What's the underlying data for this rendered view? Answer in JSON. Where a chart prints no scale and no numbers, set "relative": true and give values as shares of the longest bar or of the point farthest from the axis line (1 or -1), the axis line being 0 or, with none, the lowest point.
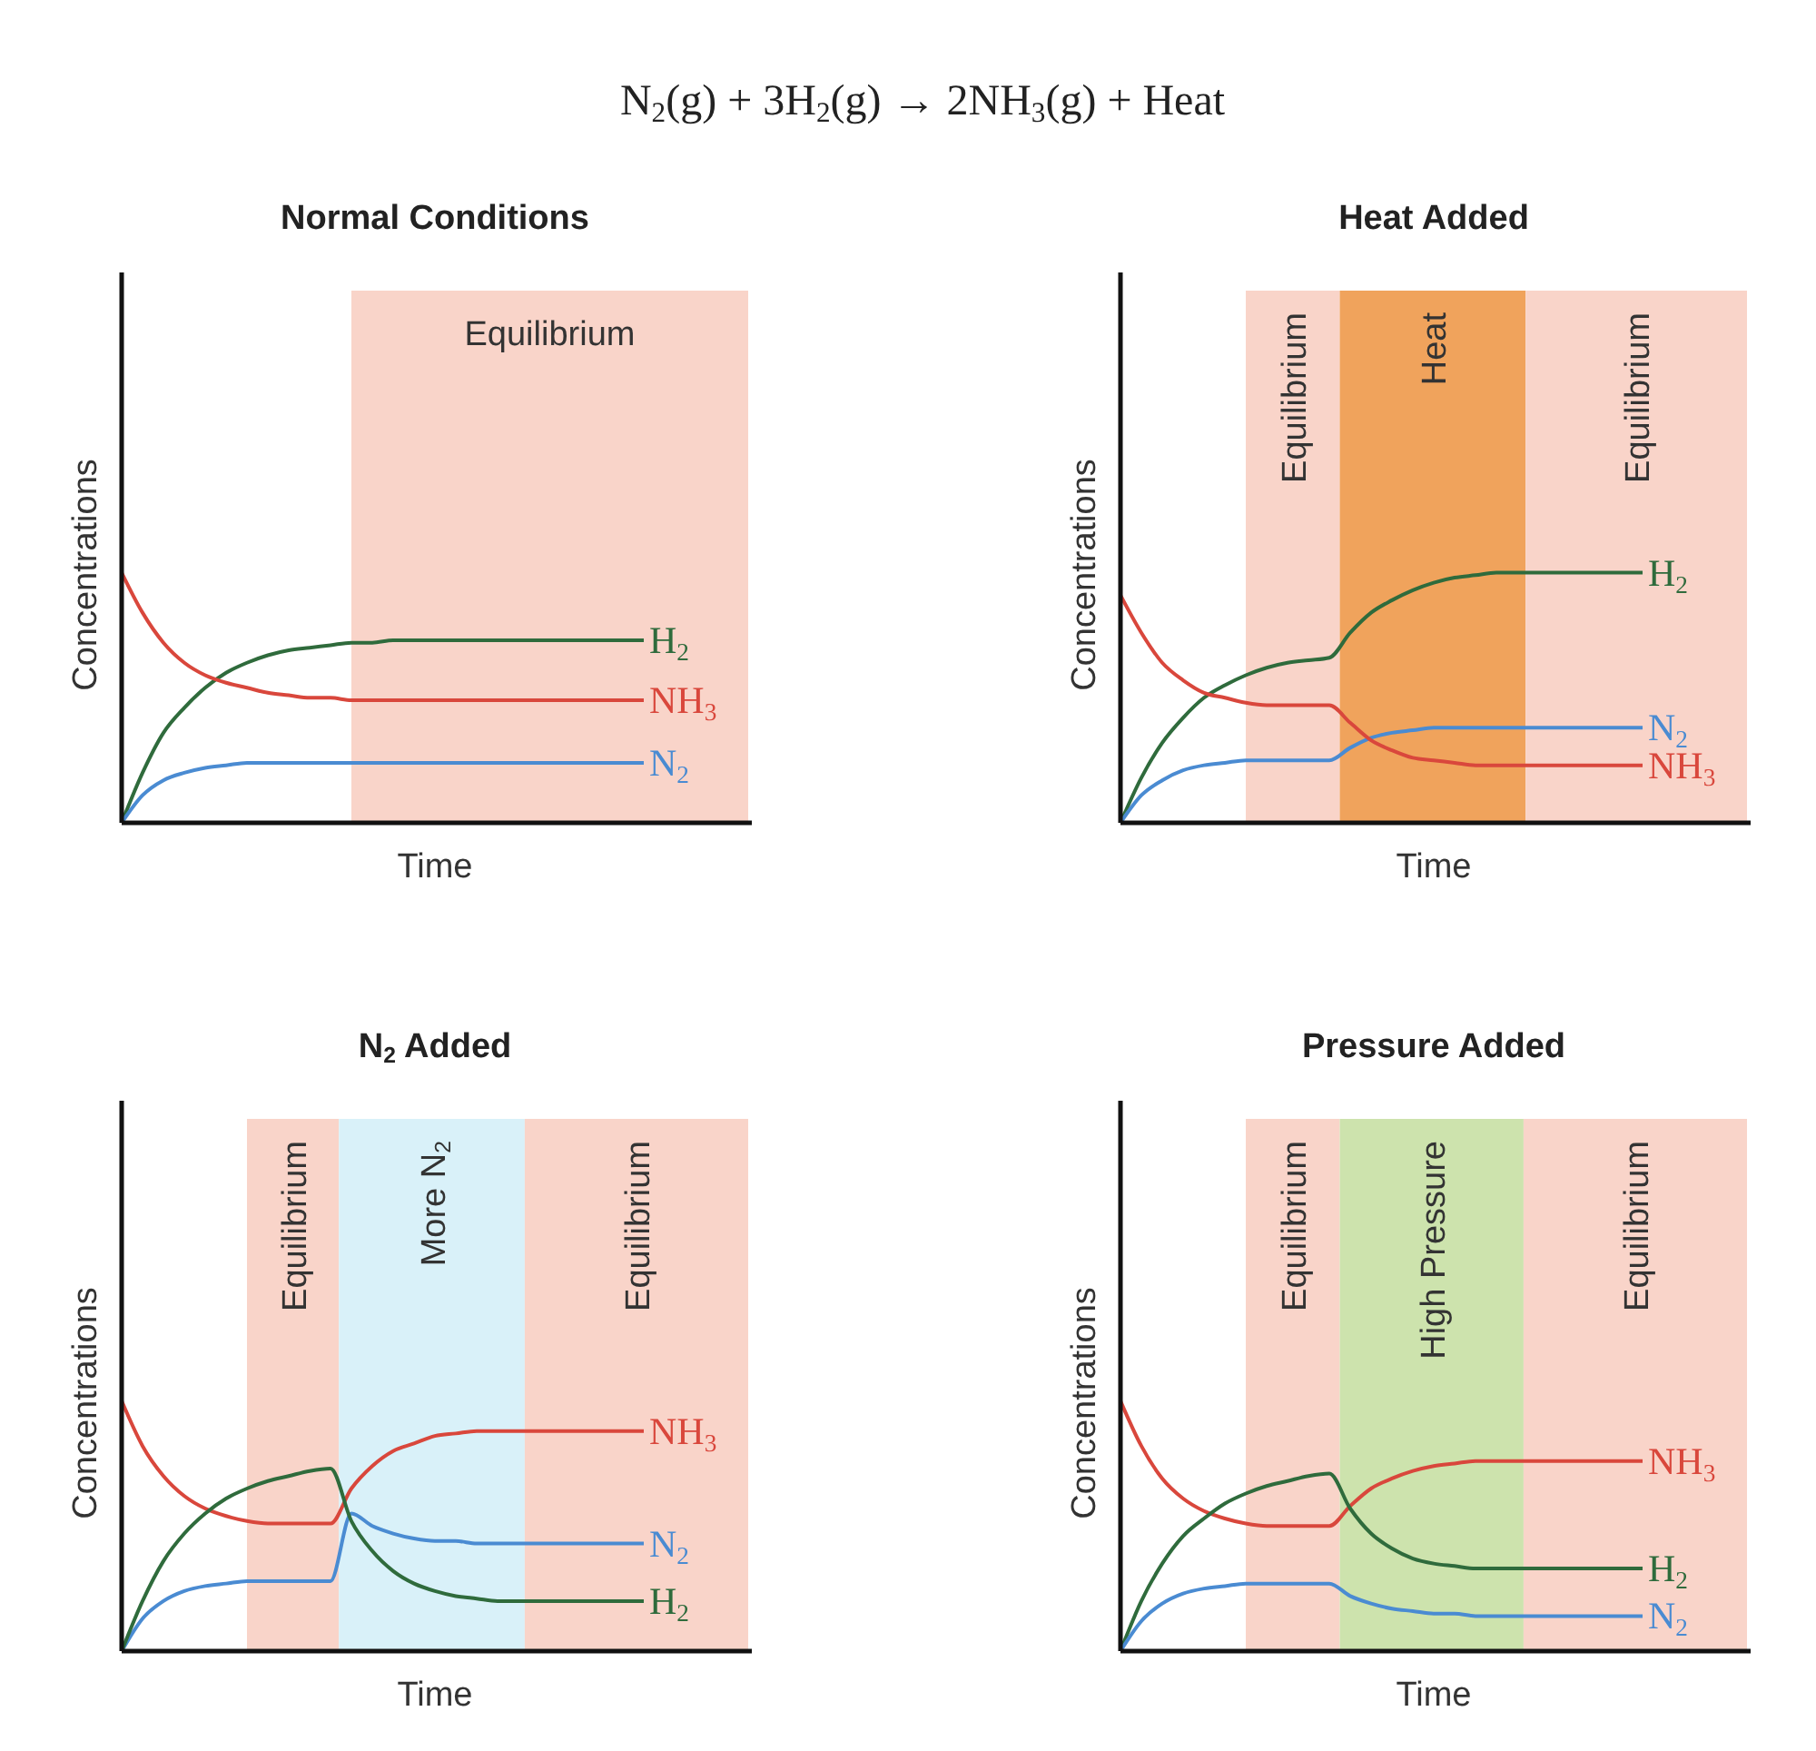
{
  "chart_data": [
    {
      "type": "other",
      "title": "N$_{2}$(g) + 3H$_{2}$(g) → 2NH$_{3}$(g) + Heat"
    },
    {
      "type": "line",
      "title": "Normal Conditions",
      "xlabel": "Time",
      "ylabel": "Concentrations",
      "relative": true,
      "categories": [
        null,
        null,
        null,
        null,
        null,
        null,
        null,
        null,
        null,
        null,
        null,
        null,
        null,
        null,
        null,
        null,
        null,
        null,
        null,
        null,
        null,
        null,
        null,
        null,
        null,
        null,
        null,
        null,
        null,
        null,
        null
      ],
      "annotations": [
        "Equilibrium"
      ],
      "series": [
        {
          "name": "H$_{2}$",
          "color": "#2f6b3c",
          "values": [
            0,
            0.2,
            0.36,
            0.46,
            0.54,
            0.6,
            0.64,
            0.67,
            0.69,
            0.7,
            0.71,
            0.72,
            0.72,
            0.73,
            0.73,
            0.73,
            0.73,
            0.73,
            0.73,
            0.73,
            0.73,
            0.73,
            0.73,
            0.73,
            0.73,
            0.73,
            null,
            null,
            null,
            null,
            null
          ]
        },
        {
          "name": "NH$_{3}$",
          "color": "#d9473c",
          "values": [
            1,
            0.84,
            0.72,
            0.64,
            0.59,
            0.56,
            0.54,
            0.52,
            0.51,
            0.5,
            0.5,
            0.49,
            0.49,
            0.49,
            0.49,
            0.49,
            0.49,
            0.49,
            0.49,
            0.49,
            0.49,
            0.49,
            0.49,
            0.49,
            0.49,
            0.49,
            null,
            null,
            null,
            null,
            null
          ]
        },
        {
          "name": "N$_{2}$",
          "color": "#4a8bd2",
          "values": [
            0,
            0.11,
            0.17,
            0.2,
            0.22,
            0.23,
            0.24,
            0.24,
            0.24,
            0.24,
            0.24,
            0.24,
            0.24,
            0.24,
            0.24,
            0.24,
            0.24,
            0.24,
            0.24,
            0.24,
            0.24,
            0.24,
            0.24,
            0.24,
            0.24,
            0.24,
            null,
            null,
            null,
            null,
            null
          ]
        }
      ]
    },
    {
      "type": "line",
      "title": "Heat Added",
      "xlabel": "Time",
      "ylabel": "Concentrations",
      "relative": true,
      "categories": [
        null,
        null,
        null,
        null,
        null,
        null,
        null,
        null,
        null,
        null,
        null,
        null,
        null,
        null,
        null,
        null,
        null,
        null,
        null,
        null,
        null,
        null,
        null,
        null,
        null,
        null,
        null,
        null,
        null,
        null,
        null
      ],
      "annotations": [
        "Equilibrium",
        "Heat",
        "Equilibrium"
      ],
      "series": [
        {
          "name": "H$_{2}$",
          "color": "#2f6b3c",
          "values": [
            0,
            0.18,
            0.32,
            0.42,
            0.5,
            0.55,
            0.59,
            0.62,
            0.64,
            0.65,
            0.66,
            0.76,
            0.84,
            0.89,
            0.93,
            0.96,
            0.98,
            0.99,
            1,
            1,
            1,
            1,
            1,
            1,
            1,
            1,
            null,
            null,
            null,
            null,
            null
          ]
        },
        {
          "name": "N$_{2}$",
          "color": "#4a8bd2",
          "values": [
            0,
            0.11,
            0.17,
            0.21,
            0.23,
            0.24,
            0.25,
            0.25,
            0.25,
            0.25,
            0.25,
            0.3,
            0.34,
            0.36,
            0.37,
            0.38,
            0.38,
            0.38,
            0.38,
            0.38,
            0.38,
            0.38,
            0.38,
            0.38,
            0.38,
            0.38,
            null,
            null,
            null,
            null,
            null
          ]
        },
        {
          "name": "NH$_{3}$",
          "color": "#d9473c",
          "values": [
            0.91,
            0.76,
            0.64,
            0.57,
            0.52,
            0.5,
            0.48,
            0.47,
            0.47,
            0.47,
            0.47,
            0.4,
            0.33,
            0.29,
            0.26,
            0.25,
            0.24,
            0.23,
            0.23,
            0.23,
            0.23,
            0.23,
            0.23,
            0.23,
            0.23,
            0.23,
            null,
            null,
            null,
            null,
            null
          ]
        }
      ]
    },
    {
      "type": "line",
      "title": "N$_{2}$ Added",
      "xlabel": "Time",
      "ylabel": "Concentrations",
      "relative": true,
      "categories": [
        null,
        null,
        null,
        null,
        null,
        null,
        null,
        null,
        null,
        null,
        null,
        null,
        null,
        null,
        null,
        null,
        null,
        null,
        null,
        null,
        null,
        null,
        null,
        null,
        null,
        null,
        null,
        null,
        null,
        null,
        null
      ],
      "annotations": [
        "Equilibrium",
        "More N$_{2}$",
        "Equilibrium"
      ],
      "series": [
        {
          "name": "NH$_{3}$",
          "color": "#d9473c",
          "values": [
            1,
            0.82,
            0.7,
            0.62,
            0.57,
            0.54,
            0.52,
            0.51,
            0.51,
            0.51,
            0.51,
            0.65,
            0.74,
            0.8,
            0.83,
            0.86,
            0.87,
            0.88,
            0.88,
            0.88,
            0.88,
            0.88,
            0.88,
            0.88,
            0.88,
            0.88,
            null,
            null,
            null,
            null,
            null
          ]
        },
        {
          "name": "N$_{2}$",
          "color": "#4a8bd2",
          "values": [
            0,
            0.13,
            0.2,
            0.24,
            0.26,
            0.27,
            0.28,
            0.28,
            0.28,
            0.28,
            0.28,
            0.55,
            0.5,
            0.47,
            0.45,
            0.44,
            0.44,
            0.43,
            0.43,
            0.43,
            0.43,
            0.43,
            0.43,
            0.43,
            0.43,
            0.43,
            null,
            null,
            null,
            null,
            null
          ]
        },
        {
          "name": "H$_{2}$",
          "color": "#2f6b3c",
          "values": [
            0,
            0.2,
            0.36,
            0.47,
            0.55,
            0.61,
            0.65,
            0.68,
            0.7,
            0.72,
            0.73,
            0.52,
            0.4,
            0.32,
            0.27,
            0.24,
            0.22,
            0.21,
            0.2,
            0.2,
            0.2,
            0.2,
            0.2,
            0.2,
            0.2,
            0.2,
            null,
            null,
            null,
            null,
            null
          ]
        }
      ]
    },
    {
      "type": "line",
      "title": "Pressure Added",
      "xlabel": "Time",
      "ylabel": "Concentrations",
      "relative": true,
      "categories": [
        null,
        null,
        null,
        null,
        null,
        null,
        null,
        null,
        null,
        null,
        null,
        null,
        null,
        null,
        null,
        null,
        null,
        null,
        null,
        null,
        null,
        null,
        null,
        null,
        null,
        null,
        null,
        null,
        null,
        null,
        null
      ],
      "annotations": [
        "Equilibrium",
        "High Pressure",
        "Equilibrium"
      ],
      "series": [
        {
          "name": "NH$_{3}$",
          "color": "#d9473c",
          "values": [
            1,
            0.82,
            0.69,
            0.61,
            0.56,
            0.53,
            0.51,
            0.5,
            0.5,
            0.5,
            0.5,
            0.58,
            0.65,
            0.69,
            0.72,
            0.74,
            0.75,
            0.76,
            0.76,
            0.76,
            0.76,
            0.76,
            0.76,
            0.76,
            0.76,
            0.76,
            null,
            null,
            null,
            null,
            null
          ]
        },
        {
          "name": "H$_{2}$",
          "color": "#2f6b3c",
          "values": [
            0,
            0.2,
            0.35,
            0.46,
            0.53,
            0.59,
            0.63,
            0.66,
            0.68,
            0.7,
            0.71,
            0.57,
            0.47,
            0.41,
            0.37,
            0.35,
            0.34,
            0.33,
            0.33,
            0.33,
            0.33,
            0.33,
            0.33,
            0.33,
            0.33,
            0.33,
            null,
            null,
            null,
            null,
            null
          ]
        },
        {
          "name": "N$_{2}$",
          "color": "#4a8bd2",
          "values": [
            0,
            0.12,
            0.19,
            0.23,
            0.25,
            0.26,
            0.27,
            0.27,
            0.27,
            0.27,
            0.27,
            0.22,
            0.19,
            0.17,
            0.16,
            0.15,
            0.15,
            0.14,
            0.14,
            0.14,
            0.14,
            0.14,
            0.14,
            0.14,
            0.14,
            0.14,
            null,
            null,
            null,
            null,
            null
          ]
        }
      ]
    }
  ]
}
